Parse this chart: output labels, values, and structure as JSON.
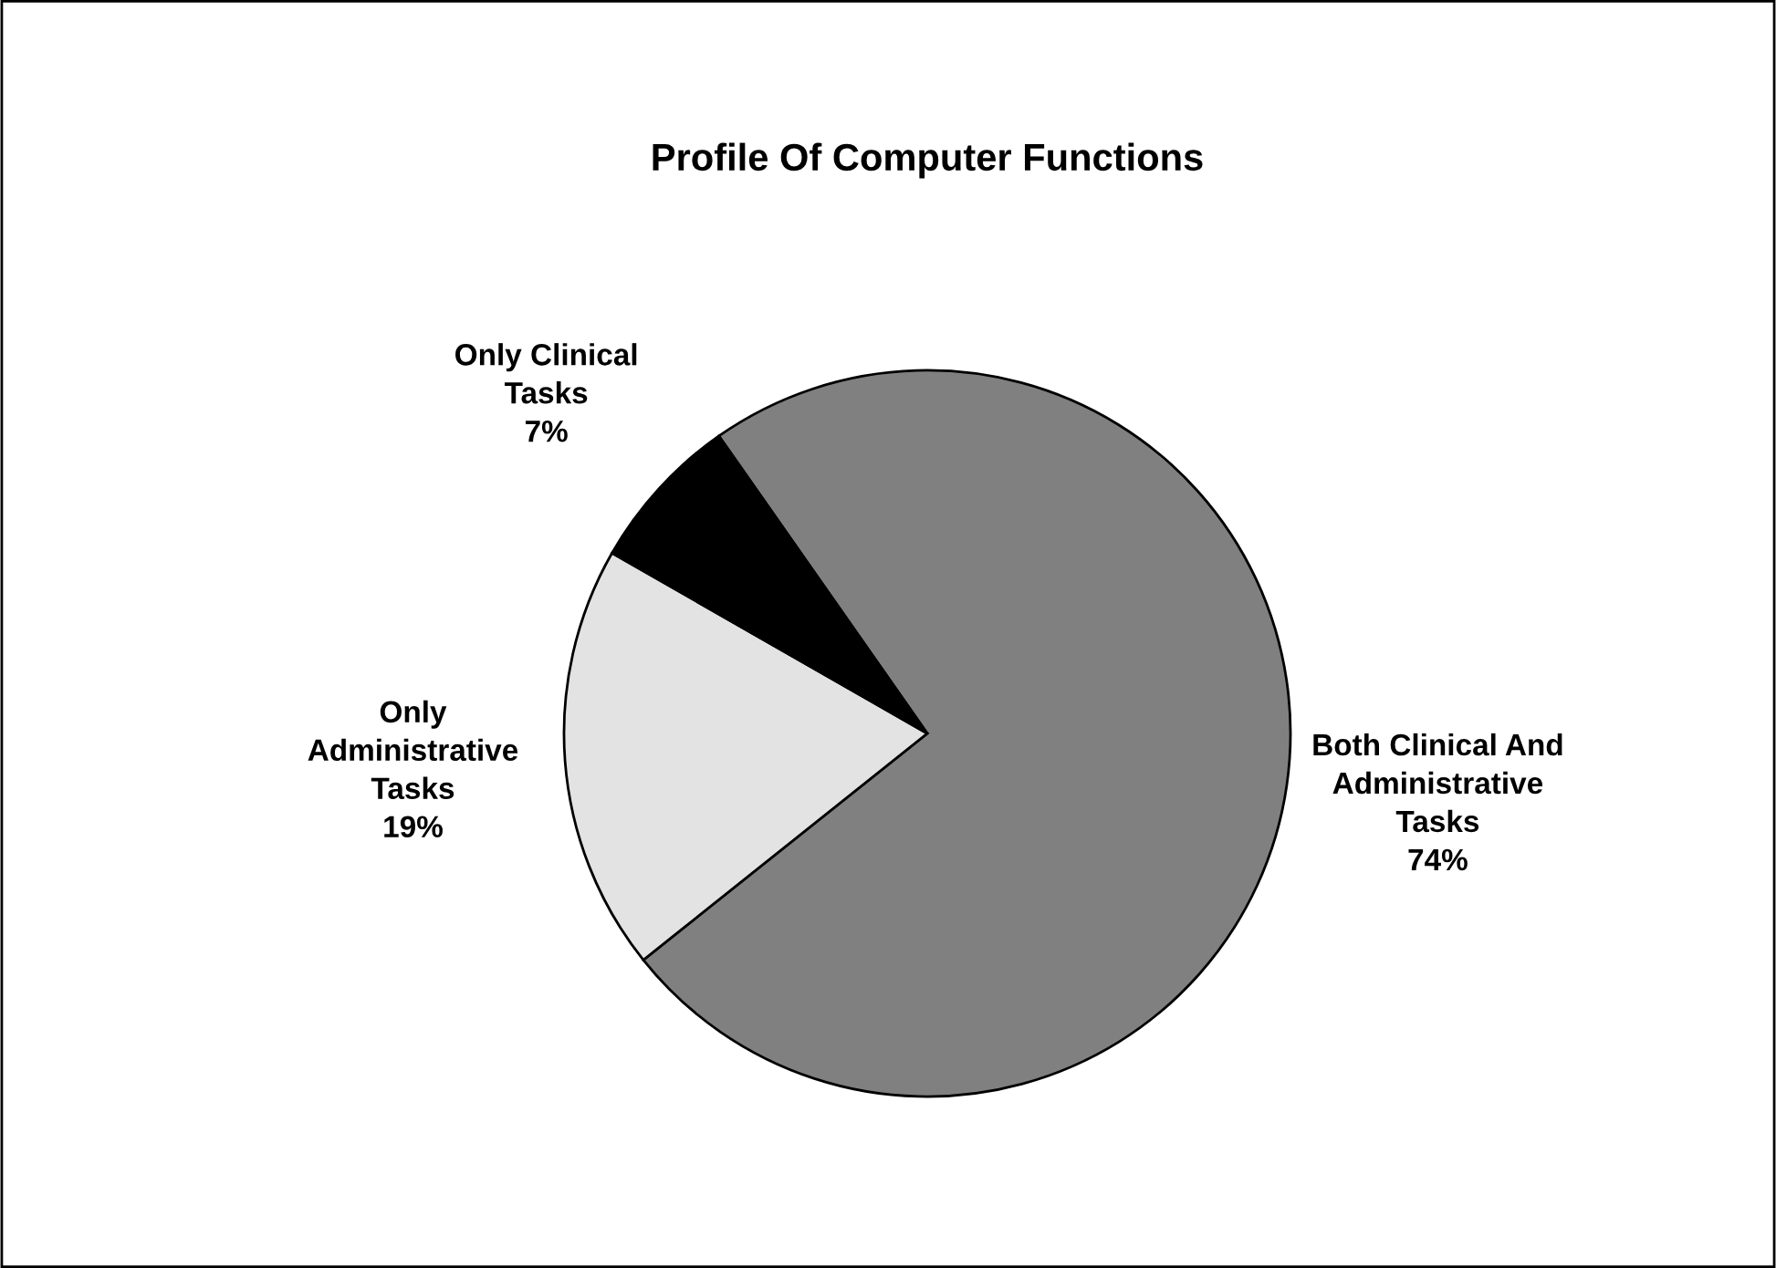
{
  "chart_data": {
    "type": "pie",
    "title": "Profile Of Computer Functions",
    "categories": [
      "Both Clinical And\nAdministrative\nTasks",
      "Only\nAdministrative\nTasks",
      "Only Clinical\nTasks"
    ],
    "values": [
      74,
      19,
      7
    ],
    "colors": [
      "#808080",
      "#e3e3e3",
      "#000000"
    ],
    "value_labels": [
      "74%",
      "19%",
      "7%"
    ]
  }
}
